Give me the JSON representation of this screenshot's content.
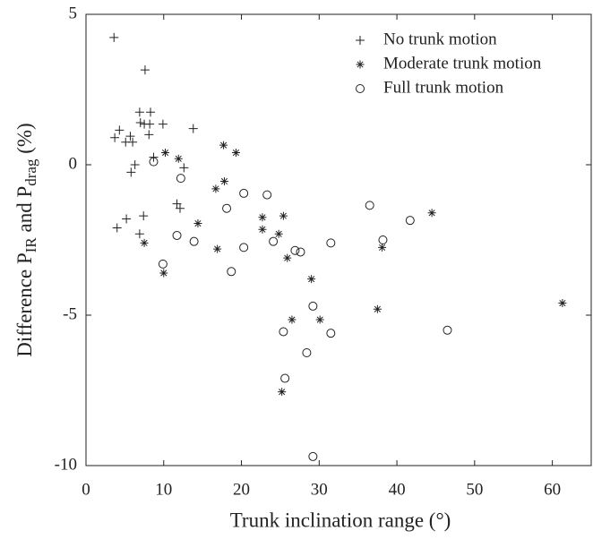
{
  "chart_data": {
    "type": "scatter",
    "x_label": "Trunk inclination range (°)",
    "y_label": {
      "parts": [
        "Difference P",
        "IR",
        " and P",
        "drag",
        " (%)"
      ]
    },
    "xlim": [
      0,
      65
    ],
    "ylim": [
      -10,
      5
    ],
    "xticks": [
      0,
      10,
      20,
      30,
      40,
      50,
      60
    ],
    "yticks": [
      -10,
      -5,
      0,
      5
    ],
    "legend": "upper right",
    "series": [
      {
        "name": "No trunk motion",
        "marker": "plus",
        "color": "#222222",
        "x": [
          3.6,
          7.6,
          3.7,
          4.3,
          5.1,
          5.7,
          6.0,
          5.8,
          6.3,
          6.9,
          7.0,
          7.5,
          8.3,
          8.1,
          8.2,
          9.9,
          8.7,
          13.8,
          12.6,
          11.7,
          12.1,
          4.0,
          5.2,
          6.9,
          7.4
        ],
        "y": [
          4.23,
          3.15,
          0.9,
          1.15,
          0.75,
          0.95,
          0.75,
          -0.25,
          0.0,
          1.75,
          1.4,
          1.35,
          1.75,
          1.0,
          1.35,
          1.35,
          0.25,
          1.2,
          -0.1,
          -1.3,
          -1.45,
          -2.1,
          -1.8,
          -2.3,
          -1.7
        ]
      },
      {
        "name": "Moderate trunk motion",
        "marker": "star",
        "color": "#222222",
        "x": [
          17.7,
          19.3,
          10.2,
          11.9,
          16.7,
          17.8,
          7.5,
          10.0,
          14.4,
          16.9,
          22.7,
          22.7,
          25.4,
          24.8,
          25.9,
          29.0,
          26.5,
          30.1,
          37.5,
          38.1,
          44.5,
          61.3,
          25.2
        ],
        "y": [
          0.65,
          0.4,
          0.4,
          0.2,
          -0.8,
          -0.55,
          -2.6,
          -3.6,
          -1.95,
          -2.8,
          -1.75,
          -2.15,
          -1.7,
          -2.3,
          -3.1,
          -3.8,
          -5.15,
          -5.15,
          -4.8,
          -2.75,
          -1.6,
          -4.6,
          -7.55
        ]
      },
      {
        "name": "Full trunk motion",
        "marker": "circle",
        "color": "#222222",
        "x": [
          8.7,
          12.2,
          20.3,
          23.3,
          18.1,
          11.7,
          9.9,
          13.9,
          18.7,
          20.3,
          24.1,
          26.9,
          27.6,
          31.5,
          36.5,
          38.2,
          41.7,
          29.2,
          25.4,
          31.5,
          46.5,
          25.6,
          28.4,
          29.2
        ],
        "y": [
          0.1,
          -0.45,
          -0.95,
          -1.0,
          -1.45,
          -2.35,
          -3.3,
          -2.55,
          -3.55,
          -2.75,
          -2.55,
          -2.85,
          -2.9,
          -2.6,
          -1.35,
          -2.5,
          -1.85,
          -4.7,
          -5.55,
          -5.6,
          -5.5,
          -7.1,
          -6.25,
          -9.7
        ]
      }
    ]
  }
}
